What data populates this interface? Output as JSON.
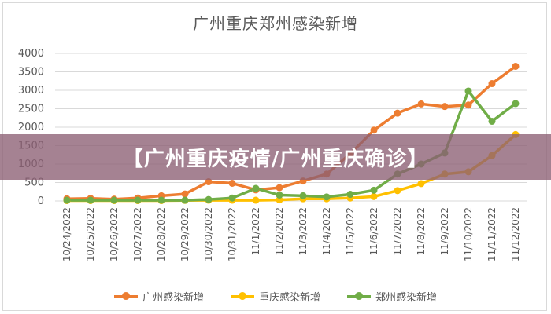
{
  "chart_data": {
    "type": "line",
    "title": "广州重庆郑州感染新增",
    "categories": [
      "10/24/2022",
      "10/25/2022",
      "10/26/2022",
      "10/27/2022",
      "10/28/2022",
      "10/29/2022",
      "10/30/2022",
      "10/31/2022",
      "11/1/2022",
      "11/2/2022",
      "11/3/2022",
      "11/4/2022",
      "11/5/2022",
      "11/6/2022",
      "11/7/2022",
      "11/8/2022",
      "11/9/2022",
      "11/10/2022",
      "11/11/2022",
      "11/12/2022"
    ],
    "ylim": [
      0,
      4000
    ],
    "yticks": [
      0,
      500,
      1000,
      1500,
      2000,
      2500,
      3000,
      3500,
      4000
    ],
    "grid": true,
    "legend_position": "bottom",
    "series": [
      {
        "name": "广州感染新增",
        "color": "#ed7d31",
        "values": [
          60,
          70,
          50,
          80,
          140,
          190,
          520,
          480,
          300,
          360,
          540,
          730,
          1280,
          1920,
          2380,
          2630,
          2560,
          2600,
          3180,
          3650
        ]
      },
      {
        "name": "重庆感染新增",
        "color": "#ffc000",
        "values": [
          10,
          10,
          10,
          10,
          10,
          15,
          20,
          20,
          20,
          30,
          60,
          60,
          80,
          120,
          280,
          470,
          730,
          790,
          1230,
          1800
        ]
      },
      {
        "name": "郑州感染新增",
        "color": "#70ad47",
        "values": [
          20,
          20,
          20,
          20,
          20,
          20,
          40,
          80,
          340,
          160,
          140,
          110,
          180,
          290,
          730,
          1000,
          1300,
          2980,
          2160,
          2640
        ]
      }
    ]
  },
  "banner": {
    "text": "【广州重庆疫情/广州重庆确诊】"
  }
}
